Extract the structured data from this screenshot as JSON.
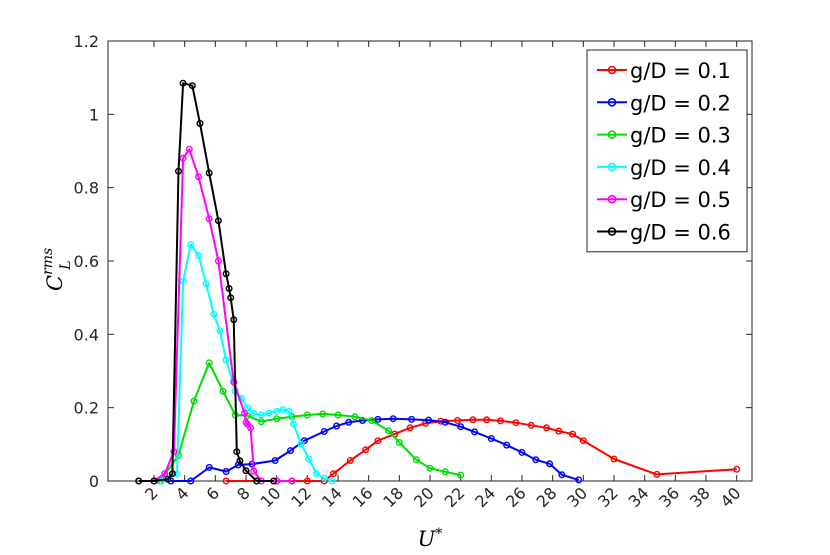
{
  "chart_data": {
    "type": "line",
    "title": "",
    "xlabel": "U",
    "xlabel_superscript": "*",
    "ylabel": "C",
    "ylabel_superscript": "rms",
    "ylabel_subscript": "L",
    "xlim": [
      -1,
      41
    ],
    "ylim": [
      0,
      1.2
    ],
    "xticks": [
      2,
      4,
      6,
      8,
      10,
      12,
      14,
      16,
      18,
      20,
      22,
      24,
      26,
      28,
      30,
      32,
      34,
      36,
      38,
      40
    ],
    "xtick_labels": [
      "2",
      "4",
      "6",
      "8",
      "10",
      "12",
      "14",
      "16",
      "18",
      "20",
      "22",
      "24",
      "26",
      "28",
      "30",
      "32",
      "34",
      "36",
      "38",
      "40"
    ],
    "yticks": [
      0,
      0.2,
      0.4,
      0.6,
      0.8,
      1,
      1.2
    ],
    "ytick_labels": [
      "0",
      "0.2",
      "0.4",
      "0.6",
      "0.8",
      "1",
      "1.2"
    ],
    "grid": false,
    "legend_position": "top-right",
    "marker": "circle",
    "series": [
      {
        "name": "g/D = 0.1",
        "color": "#ff0000",
        "x": [
          6.7,
          10.0,
          11.0,
          12.0,
          13.1,
          13.7,
          14.8,
          15.8,
          16.6,
          17.7,
          18.7,
          19.7,
          20.7,
          21.8,
          22.8,
          23.7,
          24.6,
          25.6,
          26.6,
          27.6,
          28.4,
          29.3,
          30.0,
          32.0,
          34.8,
          40.0
        ],
        "y": [
          0.0,
          0.0,
          0.0,
          0.0,
          0.0,
          0.02,
          0.056,
          0.085,
          0.11,
          0.128,
          0.145,
          0.157,
          0.163,
          0.165,
          0.167,
          0.167,
          0.164,
          0.159,
          0.152,
          0.145,
          0.136,
          0.128,
          0.11,
          0.06,
          0.018,
          0.032
        ]
      },
      {
        "name": "g/D = 0.2",
        "color": "#0000ff",
        "x": [
          3.1,
          4.4,
          5.6,
          6.7,
          7.5,
          8.4,
          9.9,
          10.9,
          11.8,
          13.1,
          13.9,
          14.7,
          15.6,
          16.6,
          17.6,
          18.8,
          19.9,
          21.0,
          22.0,
          22.9,
          24.0,
          25.0,
          26.0,
          26.9,
          27.8,
          28.6,
          29.7
        ],
        "y": [
          0.0,
          0.0,
          0.037,
          0.026,
          0.044,
          0.046,
          0.056,
          0.083,
          0.11,
          0.135,
          0.15,
          0.16,
          0.165,
          0.168,
          0.17,
          0.168,
          0.166,
          0.16,
          0.148,
          0.134,
          0.116,
          0.098,
          0.078,
          0.058,
          0.047,
          0.017,
          0.003
        ]
      },
      {
        "name": "g/D = 0.3",
        "color": "#00dd00",
        "x": [
          2.4,
          3.6,
          4.6,
          5.6,
          6.5,
          7.3,
          8.1,
          9.0,
          10.0,
          11.0,
          12.0,
          13.0,
          14.0,
          15.1,
          16.2,
          17.3,
          18.0,
          19.1,
          20.0,
          21.0,
          22.0
        ],
        "y": [
          0.0,
          0.07,
          0.218,
          0.322,
          0.245,
          0.18,
          0.178,
          0.162,
          0.17,
          0.175,
          0.18,
          0.183,
          0.18,
          0.175,
          0.165,
          0.137,
          0.105,
          0.058,
          0.035,
          0.025,
          0.016
        ]
      },
      {
        "name": "g/D = 0.4",
        "color": "#00ffff",
        "x": [
          2.5,
          3.5,
          3.9,
          4.4,
          4.9,
          5.4,
          5.9,
          6.3,
          6.7,
          7.3,
          7.7,
          8.1,
          8.5,
          9.0,
          9.5,
          10.0,
          10.4,
          10.8,
          11.1,
          11.6,
          12.1,
          12.6,
          13.1,
          13.6
        ],
        "y": [
          0.0,
          0.02,
          0.545,
          0.645,
          0.615,
          0.538,
          0.455,
          0.41,
          0.33,
          0.245,
          0.225,
          0.2,
          0.185,
          0.18,
          0.185,
          0.19,
          0.195,
          0.19,
          0.155,
          0.1,
          0.06,
          0.02,
          0.008,
          0.0
        ]
      },
      {
        "name": "g/D = 0.5",
        "color": "#ff00ff",
        "x": [
          1.0,
          2.0,
          2.7,
          3.3,
          3.9,
          4.3,
          4.9,
          5.6,
          6.2,
          7.2,
          7.9,
          8.0,
          8.1,
          8.3,
          8.5,
          9.0,
          10.0,
          11.0
        ],
        "y": [
          0.0,
          0.0,
          0.02,
          0.08,
          0.88,
          0.905,
          0.83,
          0.715,
          0.6,
          0.27,
          0.185,
          0.16,
          0.155,
          0.145,
          0.027,
          0.0,
          0.0,
          0.0
        ]
      },
      {
        "name": "g/D = 0.6",
        "color": "#000000",
        "x": [
          1.0,
          2.0,
          2.9,
          3.2,
          3.6,
          3.9,
          4.5,
          5.0,
          5.6,
          6.2,
          6.7,
          6.9,
          7.0,
          7.2,
          7.4,
          7.6,
          8.0,
          8.7,
          9.8
        ],
        "y": [
          0.0,
          0.0,
          0.005,
          0.02,
          0.845,
          1.085,
          1.078,
          0.975,
          0.84,
          0.71,
          0.565,
          0.525,
          0.5,
          0.44,
          0.08,
          0.055,
          0.028,
          0.0,
          0.0
        ]
      }
    ]
  }
}
